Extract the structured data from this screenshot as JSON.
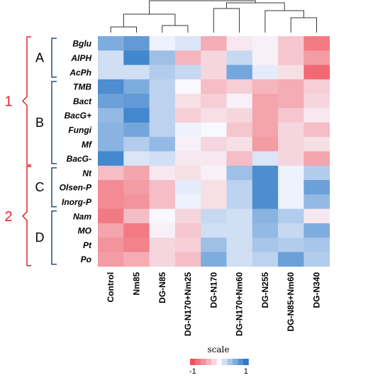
{
  "chart_data": {
    "type": "heatmap",
    "columns": [
      "Control",
      "Nm85",
      "DG-N85",
      "DG-N170+Nm25",
      "DG-N170",
      "DG-N170+Nm60",
      "DG-N255",
      "DG-N85+Nm60",
      "DG-N340"
    ],
    "rows": [
      "Bglu",
      "AlPH",
      "AcPh",
      "TMB",
      "Bact",
      "BacG+",
      "Fungi",
      "Mf",
      "BacG-",
      "Nt",
      "Olsen-P",
      "Inorg-P",
      "Nam",
      "MO",
      "Pt",
      "Po"
    ],
    "values": [
      [
        0.6,
        0.75,
        0.05,
        0.15,
        -0.45,
        -0.1,
        -0.05,
        -0.3,
        -0.75
      ],
      [
        0.2,
        0.9,
        0.45,
        -0.4,
        -0.2,
        0.25,
        -0.05,
        -0.3,
        -0.55
      ],
      [
        0.2,
        0.2,
        0.35,
        0.25,
        -0.2,
        0.65,
        0.1,
        -0.15,
        -0.85
      ],
      [
        0.85,
        0.6,
        0.3,
        0.0,
        -0.35,
        -0.25,
        -0.4,
        -0.45,
        -0.25
      ],
      [
        0.7,
        0.75,
        0.3,
        -0.15,
        -0.25,
        -0.05,
        -0.5,
        -0.45,
        -0.2
      ],
      [
        0.5,
        0.9,
        0.3,
        -0.25,
        -0.15,
        -0.2,
        -0.5,
        -0.3,
        -0.1
      ],
      [
        0.55,
        0.65,
        0.3,
        0.05,
        0.0,
        -0.3,
        -0.5,
        -0.2,
        -0.35
      ],
      [
        0.55,
        0.35,
        0.5,
        -0.05,
        -0.2,
        -0.15,
        -0.55,
        -0.2,
        -0.15
      ],
      [
        0.9,
        0.15,
        0.2,
        -0.1,
        -0.1,
        -0.35,
        0.15,
        -0.2,
        -0.5
      ],
      [
        -0.35,
        -0.5,
        -0.1,
        -0.15,
        -0.05,
        0.45,
        0.85,
        0.05,
        0.35
      ],
      [
        -0.65,
        -0.55,
        -0.35,
        0.1,
        -0.15,
        0.3,
        0.85,
        0.05,
        0.7
      ],
      [
        -0.65,
        -0.6,
        -0.35,
        0.05,
        -0.15,
        0.3,
        0.85,
        0.05,
        0.5
      ],
      [
        -0.75,
        -0.35,
        0.0,
        -0.2,
        0.25,
        0.2,
        0.55,
        0.35,
        -0.1
      ],
      [
        -0.5,
        -0.75,
        -0.05,
        -0.3,
        0.2,
        0.2,
        0.5,
        0.25,
        0.6
      ],
      [
        -0.6,
        -0.7,
        -0.2,
        -0.25,
        0.45,
        0.2,
        0.4,
        0.35,
        0.4
      ],
      [
        -0.55,
        -0.45,
        -0.2,
        -0.35,
        0.6,
        0.2,
        0.3,
        0.7,
        0.35
      ]
    ],
    "row_groups": [
      {
        "label": "A",
        "rows": [
          "Bglu",
          "AlPH",
          "AcPh"
        ]
      },
      {
        "label": "B",
        "rows": [
          "TMB",
          "Bact",
          "BacG+",
          "Fungi",
          "Mf",
          "BacG-"
        ]
      },
      {
        "label": "C",
        "rows": [
          "Nt",
          "Olsen-P",
          "Inorg-P"
        ]
      },
      {
        "label": "D",
        "rows": [
          "Nam",
          "MO",
          "Pt",
          "Po"
        ]
      }
    ],
    "row_clusters": [
      {
        "label": "1",
        "groups": [
          "A",
          "B"
        ]
      },
      {
        "label": "2",
        "groups": [
          "C",
          "D"
        ]
      }
    ],
    "scale": {
      "title": "scale",
      "range": [
        -1,
        1
      ],
      "tick_labels": [
        "-1",
        "1"
      ],
      "low_color": "#f0505a",
      "mid_color": "#f8f8ff",
      "high_color": "#2f7ac8"
    },
    "column_dendrogram": "shown",
    "group_bracket_color": "#2a4d7a",
    "cluster_bracket_color": "#e0262b"
  }
}
